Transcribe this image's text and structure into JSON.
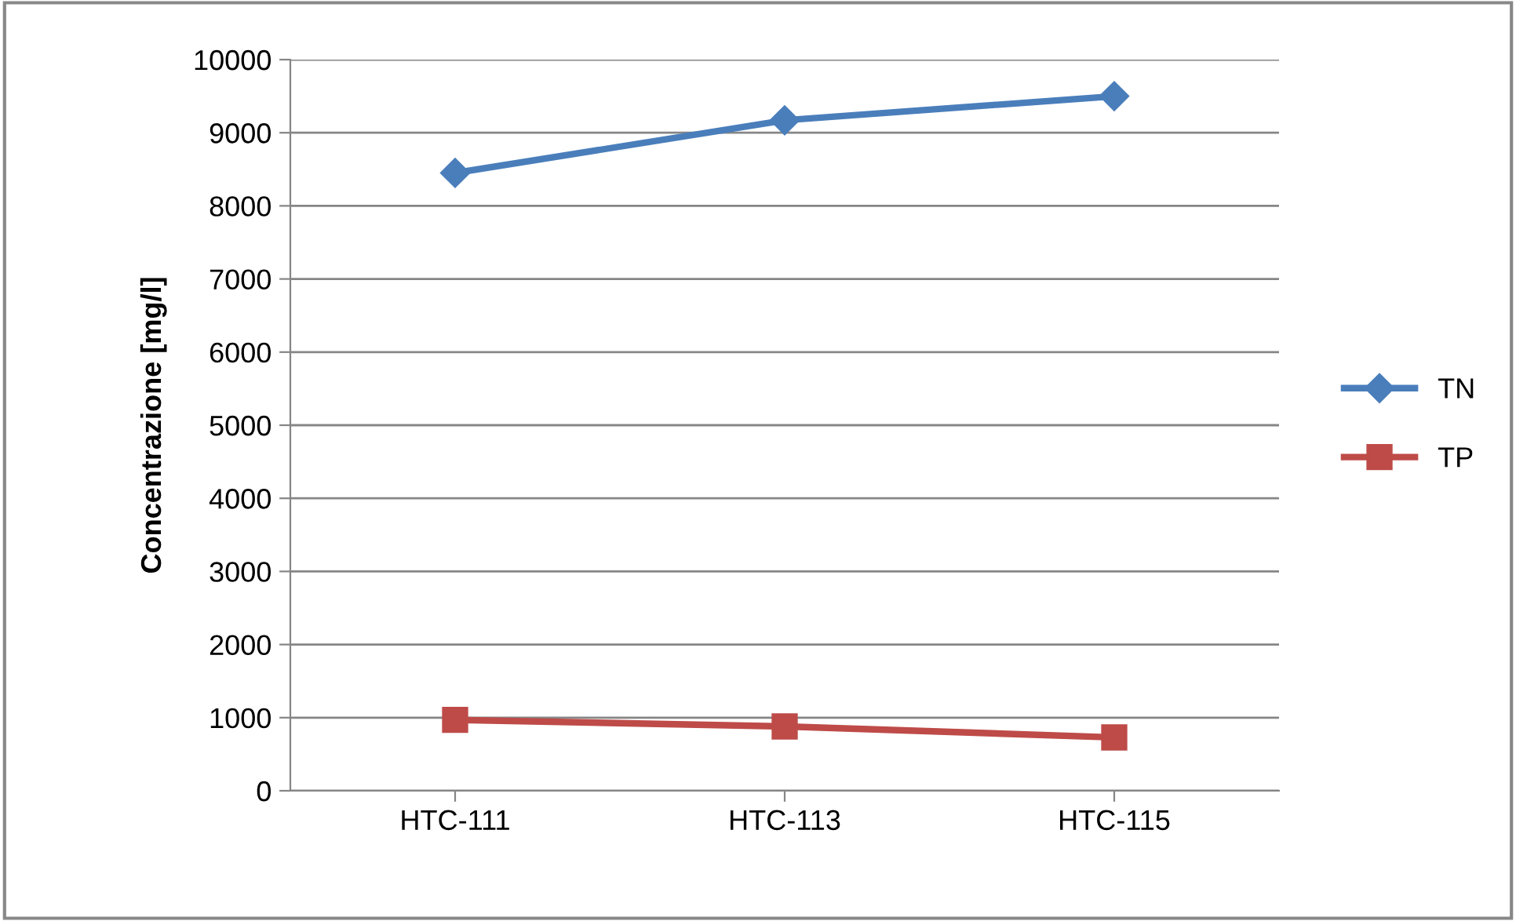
{
  "chart_data": {
    "type": "line",
    "ylabel": "Concentrazione [mg/l]",
    "categories": [
      "HTC-111",
      "HTC-113",
      "HTC-115"
    ],
    "series": [
      {
        "name": "TN",
        "color": "#4a7ebb",
        "marker": "diamond",
        "values": [
          8450,
          9170,
          9500
        ]
      },
      {
        "name": "TP",
        "color": "#be4b48",
        "marker": "square",
        "values": [
          970,
          880,
          730
        ]
      }
    ],
    "ylim": [
      0,
      10000
    ],
    "yticks": [
      0,
      1000,
      2000,
      3000,
      4000,
      5000,
      6000,
      7000,
      8000,
      9000,
      10000
    ],
    "grid": "y",
    "legend": "right"
  }
}
